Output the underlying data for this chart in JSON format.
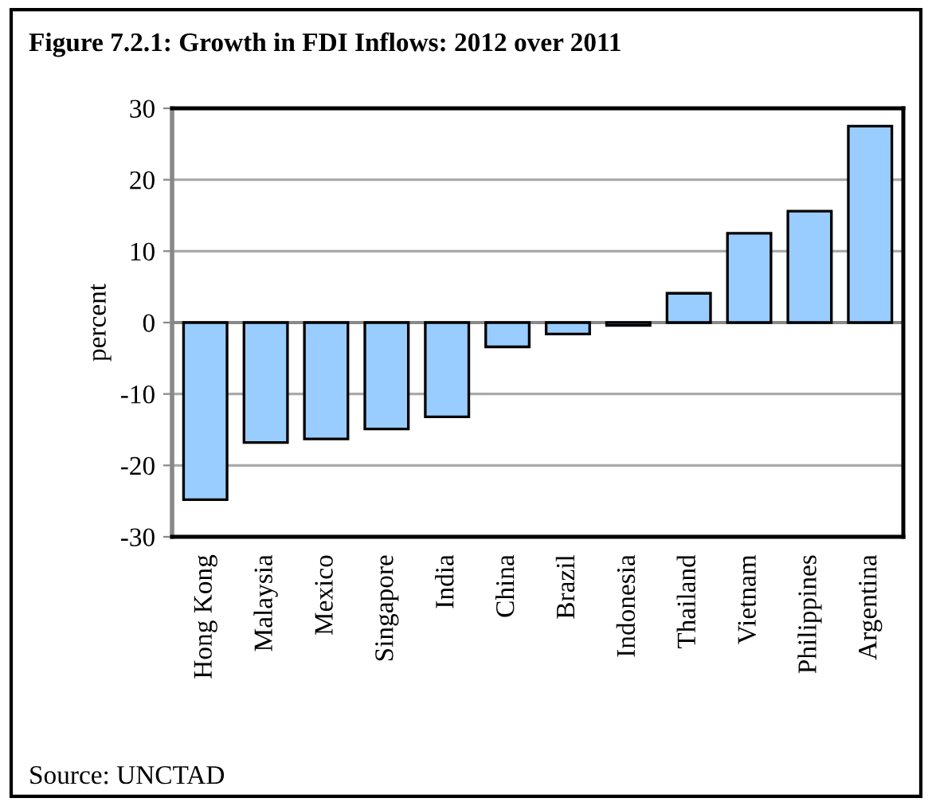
{
  "chart_data": {
    "type": "bar",
    "title": "Figure 7.2.1: Growth in FDI Inflows: 2012 over 2011",
    "ylabel": "percent",
    "categories": [
      "Hong Kong",
      "Malaysia",
      "Mexico",
      "Singapore",
      "India",
      "China",
      "Brazil",
      "Indonesia",
      "Thailand",
      "Vietnam",
      "Philippines",
      "Argentina"
    ],
    "values": [
      -24.8,
      -16.8,
      -16.3,
      -14.9,
      -13.2,
      -3.4,
      -1.6,
      -0.4,
      4.1,
      12.5,
      15.6,
      27.5
    ],
    "color": "#99ccff",
    "ylim": [
      -30,
      30
    ],
    "yticks": [
      -30,
      -20,
      -10,
      0,
      10,
      20,
      30
    ],
    "grid": "y",
    "annotations": [
      "Source: UNCTAD"
    ]
  }
}
